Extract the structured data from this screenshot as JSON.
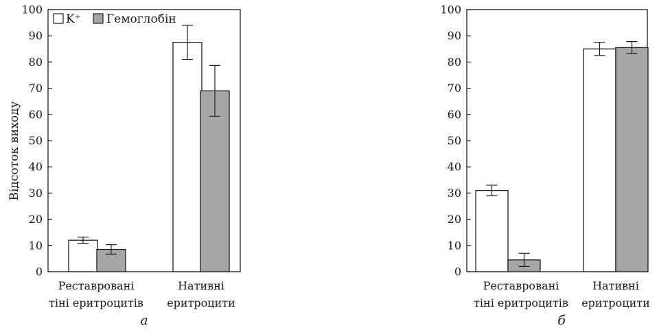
{
  "chart_data": [
    {
      "type": "bar",
      "panel_label": "а",
      "ylabel": "Відсоток виходу",
      "ylim": [
        0,
        100
      ],
      "yticks": [
        0,
        10,
        20,
        30,
        40,
        50,
        60,
        70,
        80,
        90,
        100
      ],
      "categories": [
        [
          "Реставровані",
          "тіні еритроцитів"
        ],
        [
          "Нативні",
          "еритроцити"
        ]
      ],
      "series": [
        {
          "name": "K⁺",
          "color": "#ffffff",
          "values": [
            12,
            87.5
          ],
          "errors": [
            1.2,
            6.5
          ]
        },
        {
          "name": "Гемоглобін",
          "color": "#a6a6a6",
          "values": [
            8.5,
            69
          ],
          "errors": [
            1.8,
            9.7
          ]
        }
      ],
      "legend": {
        "placement": "top-left"
      }
    },
    {
      "type": "bar",
      "panel_label": "б",
      "ylabel": "",
      "ylim": [
        0,
        100
      ],
      "yticks": [
        0,
        10,
        20,
        30,
        40,
        50,
        60,
        70,
        80,
        90,
        100
      ],
      "categories": [
        [
          "Реставровані",
          "тіні еритроцитів"
        ],
        [
          "Нативні",
          "еритроцити"
        ]
      ],
      "series": [
        {
          "name": "K⁺",
          "color": "#ffffff",
          "values": [
            31,
            85
          ],
          "errors": [
            2,
            2.5
          ]
        },
        {
          "name": "Гемоглобін",
          "color": "#a6a6a6",
          "values": [
            4.5,
            85.5
          ],
          "errors": [
            2.5,
            2.3
          ]
        }
      ]
    }
  ]
}
